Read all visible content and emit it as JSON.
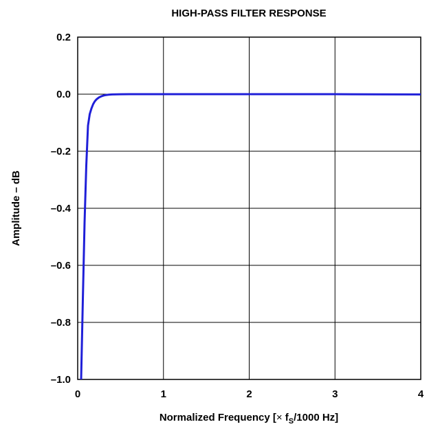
{
  "chart_data": {
    "type": "line",
    "title": "HIGH-PASS FILTER RESPONSE",
    "xlabel": {
      "prefix": "Normalized Frequency [",
      "times": "×",
      "f": " f",
      "sub": "S",
      "suffix": "/1000 Hz]"
    },
    "ylabel": "Amplitude – dB",
    "xlim": [
      0,
      4
    ],
    "ylim": [
      -1.0,
      0.2
    ],
    "x_ticks": [
      "0",
      "1",
      "2",
      "3",
      "4"
    ],
    "y_ticks": [
      "0.2",
      "0.0",
      "–0.2",
      "–0.4",
      "–0.6",
      "–0.8",
      "–1.0"
    ],
    "grid": true,
    "series": [
      {
        "color": "#1f1fd8",
        "x": [
          0.04,
          0.06,
          0.08,
          0.1,
          0.12,
          0.14,
          0.16,
          0.18,
          0.2,
          0.22,
          0.25,
          0.28,
          0.3,
          0.33,
          0.36,
          0.4,
          0.45,
          0.5,
          0.6,
          0.8,
          1.0,
          1.5,
          2.0,
          2.5,
          3.0,
          3.5,
          4.0
        ],
        "y": [
          -1.0,
          -0.72,
          -0.45,
          -0.25,
          -0.11,
          -0.07,
          -0.05,
          -0.035,
          -0.025,
          -0.018,
          -0.011,
          -0.007,
          -0.005,
          -0.003,
          -0.002,
          -0.001,
          -0.0005,
          -0.0003,
          -0.0001,
          0.0,
          0.0,
          0.0,
          0.0,
          0.0,
          0.0,
          -0.0005,
          -0.001
        ]
      }
    ]
  }
}
